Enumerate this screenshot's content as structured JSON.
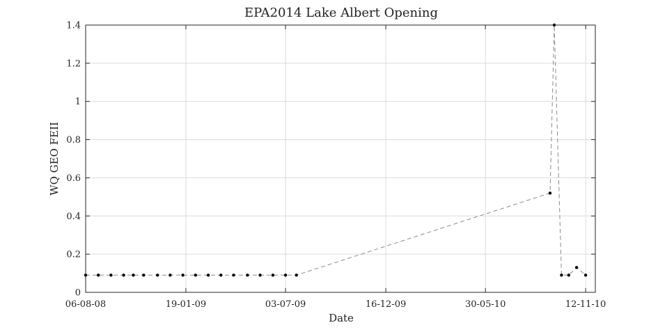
{
  "chart_data": {
    "type": "line",
    "title": "EPA2014 Lake Albert Opening",
    "xlabel": "Date",
    "ylabel": "WQ GEO FEII",
    "x_axis_type": "date",
    "xlim": [
      "2008-08-06",
      "2010-11-28"
    ],
    "ylim": [
      0,
      1.4
    ],
    "x_ticks": [
      "2008-08-06",
      "2009-01-19",
      "2009-07-03",
      "2009-12-16",
      "2010-05-30",
      "2010-11-12"
    ],
    "x_tick_labels": [
      "06-08-08",
      "19-01-09",
      "03-07-09",
      "16-12-09",
      "30-05-10",
      "12-11-10"
    ],
    "y_ticks": [
      0,
      0.2,
      0.4,
      0.6,
      0.8,
      1,
      1.2,
      1.4
    ],
    "y_tick_labels": [
      "0",
      "0.2",
      "0.4",
      "0.6",
      "0.8",
      "1",
      "1.2",
      "1.4"
    ],
    "grid": true,
    "legend": "none",
    "line_color": "#8c8c8c",
    "line_style": "dashed",
    "marker_color": "#000000",
    "series": [
      {
        "x": [
          "2008-08-06",
          "2008-08-27",
          "2008-09-17",
          "2008-10-08",
          "2008-10-24",
          "2008-11-10",
          "2008-12-03",
          "2008-12-24",
          "2009-01-14",
          "2009-02-04",
          "2009-02-25",
          "2009-03-18",
          "2009-04-08",
          "2009-05-01",
          "2009-05-22",
          "2009-06-12",
          "2009-07-03",
          "2009-07-21",
          "2010-09-14",
          "2010-09-21",
          "2010-10-03",
          "2010-10-15",
          "2010-10-28",
          "2010-11-12"
        ],
        "y": [
          0.09,
          0.09,
          0.09,
          0.09,
          0.09,
          0.09,
          0.09,
          0.09,
          0.09,
          0.09,
          0.09,
          0.09,
          0.09,
          0.09,
          0.09,
          0.09,
          0.09,
          0.09,
          0.52,
          1.4,
          0.09,
          0.09,
          0.13,
          0.09
        ]
      }
    ]
  }
}
